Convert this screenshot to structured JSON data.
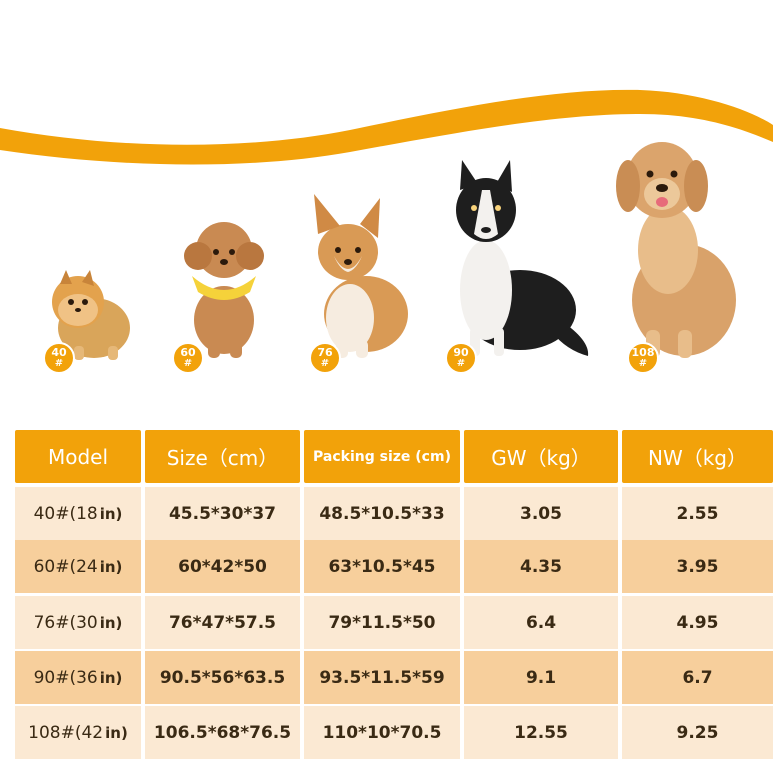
{
  "colors": {
    "accent": "#f2a20a",
    "row_light": "#fbe9d3",
    "row_dark": "#f7cf9c",
    "text": "#3a2a14"
  },
  "dogs": [
    {
      "name": "pomeranian",
      "badge_num": "40",
      "badge_hash": "#"
    },
    {
      "name": "poodle",
      "badge_num": "60",
      "badge_hash": "#"
    },
    {
      "name": "corgi",
      "badge_num": "76",
      "badge_hash": "#"
    },
    {
      "name": "border-collie",
      "badge_num": "90",
      "badge_hash": "#"
    },
    {
      "name": "golden-retriever",
      "badge_num": "108",
      "badge_hash": "#"
    }
  ],
  "table": {
    "headers": [
      "Model",
      "Size（cm）",
      "Packing size (cm)",
      "GW（kg）",
      "NW（kg）"
    ],
    "rows": [
      {
        "model": "40#(18",
        "unit": "in)",
        "size": "45.5*30*37",
        "packing": "48.5*10.5*33",
        "gw": "3.05",
        "nw": "2.55"
      },
      {
        "model": "60#(24",
        "unit": "in)",
        "size": "60*42*50",
        "packing": "63*10.5*45",
        "gw": "4.35",
        "nw": "3.95"
      },
      {
        "model": "76#(30",
        "unit": "in)",
        "size": "76*47*57.5",
        "packing": "79*11.5*50",
        "gw": "6.4",
        "nw": "4.95"
      },
      {
        "model": "90#(36",
        "unit": "in)",
        "size": "90.5*56*63.5",
        "packing": "93.5*11.5*59",
        "gw": "9.1",
        "nw": "6.7"
      },
      {
        "model": "108#(42",
        "unit": "in)",
        "size": "106.5*68*76.5",
        "packing": "110*10*70.5",
        "gw": "12.55",
        "nw": "9.25"
      }
    ]
  }
}
